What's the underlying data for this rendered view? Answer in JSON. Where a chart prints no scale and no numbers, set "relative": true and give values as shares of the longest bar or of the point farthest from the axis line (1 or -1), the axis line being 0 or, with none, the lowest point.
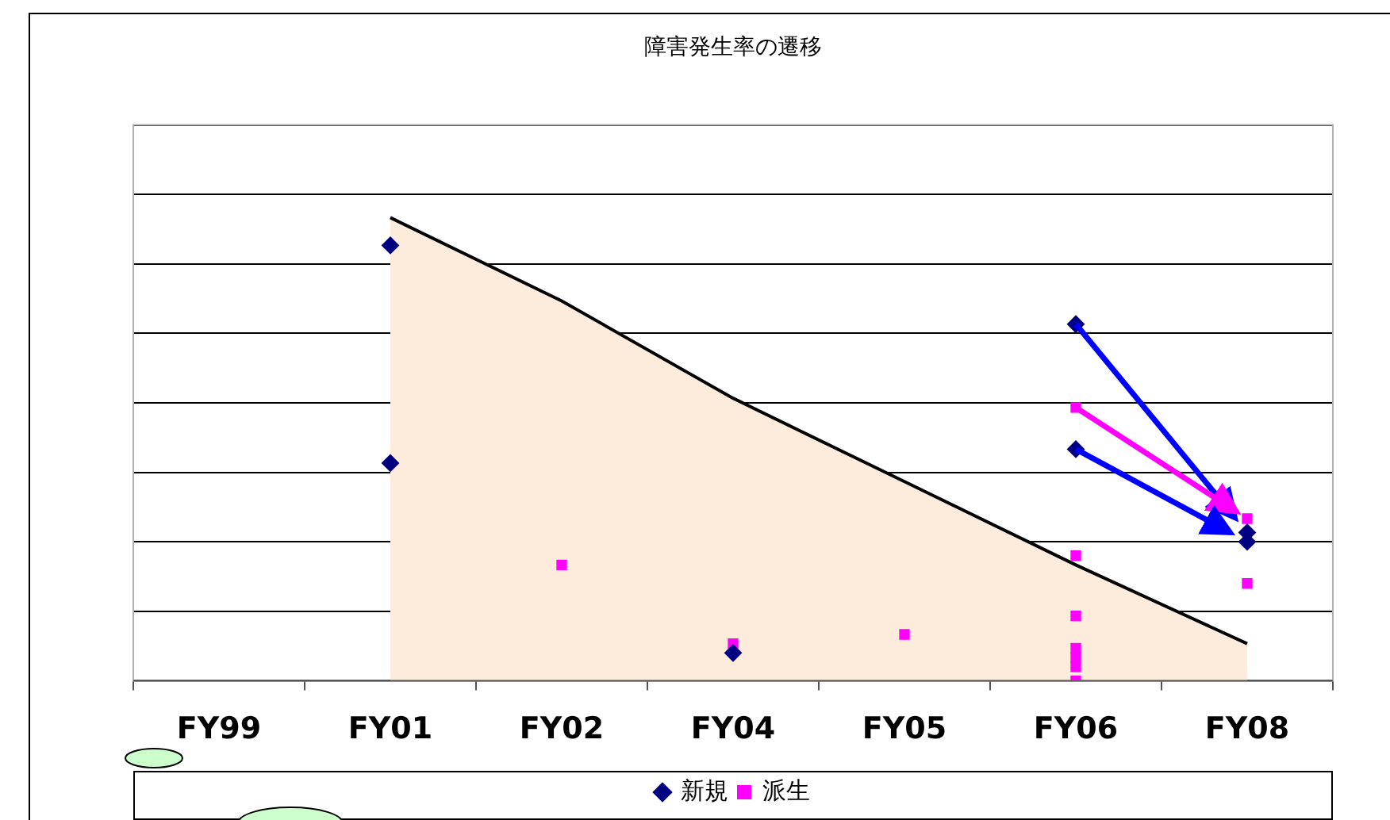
{
  "chart_data": {
    "type": "scatter",
    "title": "障害発生率の遷移",
    "relative": true,
    "grid": "y",
    "legend": "bottom",
    "categories": [
      "FY99",
      "FY01",
      "FY02",
      "FY04",
      "FY05",
      "FY06",
      "FY08"
    ],
    "series": [
      {
        "type": "area",
        "color": "#fdebdc",
        "marker": "none",
        "values": [
          null,
          1,
          0.82,
          0.61,
          0.43,
          0.25,
          0.08
        ]
      },
      {
        "name": "新規",
        "color": "#000080",
        "marker": "diamond",
        "x": [
          "FY01",
          "FY01",
          "FY04",
          "FY06",
          "FY06",
          "FY08",
          "FY08"
        ],
        "values": [
          0.94,
          0.47,
          0.06,
          0.77,
          0.5,
          0.32,
          0.3
        ]
      },
      {
        "name": "派生",
        "color": "#ff00ff",
        "marker": "square",
        "x": [
          "FY02",
          "FY04",
          "FY05",
          "FY06",
          "FY06",
          "FY06",
          "FY06",
          "FY06",
          "FY06",
          "FY06",
          "FY08",
          "FY08"
        ],
        "values": [
          0.25,
          0.08,
          0.1,
          0.59,
          0.03,
          0.27,
          0.07,
          0.14,
          0,
          0.05,
          0.35,
          0.21
        ]
      }
    ]
  }
}
